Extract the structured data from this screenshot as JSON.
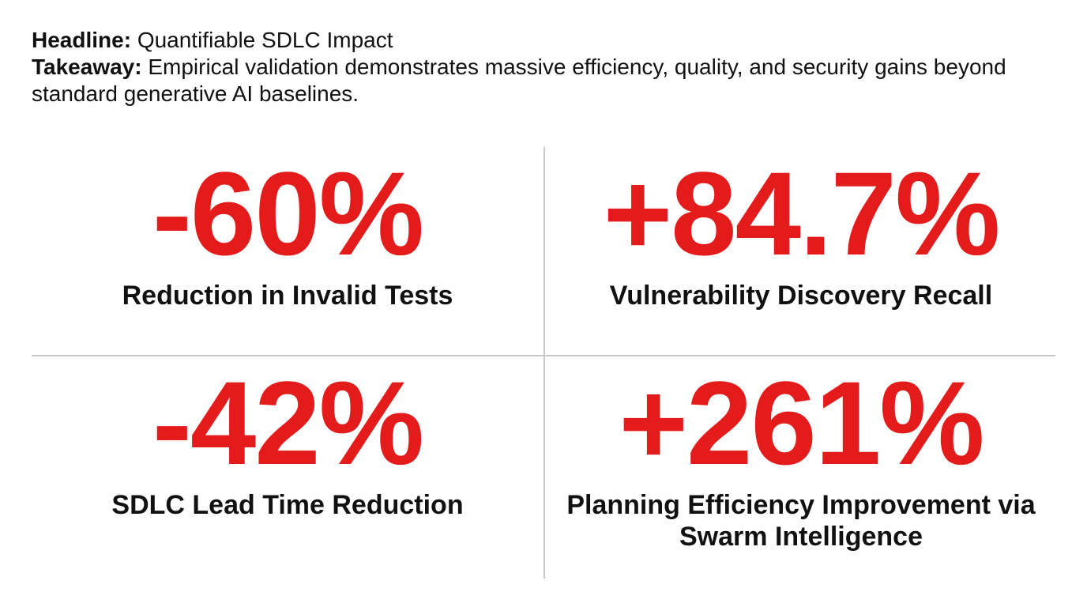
{
  "header": {
    "headline_label": "Headline:",
    "headline_text": "Quantifiable SDLC Impact",
    "takeaway_label": "Takeaway:",
    "takeaway_text": "Empirical validation demonstrates massive efficiency, quality, and security gains beyond standard generative AI baselines."
  },
  "metrics": [
    {
      "value": "-60%",
      "caption": "Reduction in Invalid Tests"
    },
    {
      "value": "+84.7%",
      "caption": "Vulnerability Discovery Recall"
    },
    {
      "value": "-42%",
      "caption": "SDLC Lead Time Reduction"
    },
    {
      "value": "+261%",
      "caption": "Planning Efficiency Improvement via Swarm Intelligence"
    }
  ],
  "colors": {
    "accent": "#e31b1b",
    "text": "#111111",
    "divider": "#c8c8c8"
  }
}
